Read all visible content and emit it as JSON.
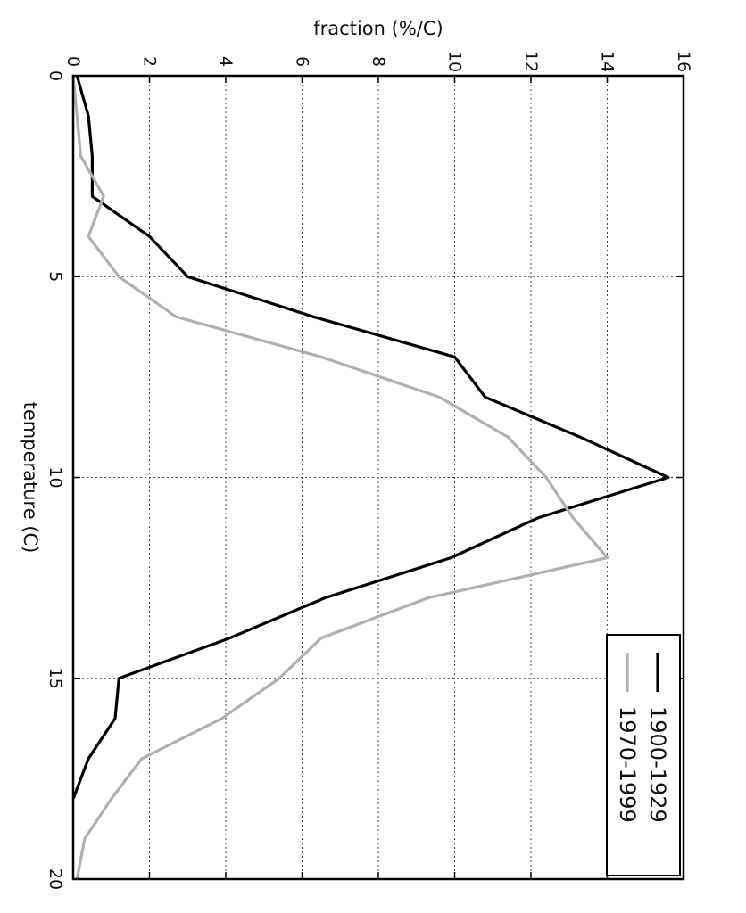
{
  "chart_data": {
    "type": "line",
    "orientation": "rotated 90° clockwise (temperature axis runs top-to-bottom on the left side, fraction axis runs left-to-right along the top)",
    "title": "",
    "xlabel": "temperature (C)",
    "ylabel": "fraction (%/C)",
    "xlim": [
      0,
      20
    ],
    "ylim": [
      0,
      16
    ],
    "x_ticks": [
      "0",
      "5",
      "10",
      "15",
      "20"
    ],
    "y_ticks": [
      "0",
      "2",
      "4",
      "6",
      "8",
      "10",
      "12",
      "14",
      "16"
    ],
    "grid": true,
    "legend_position": "bottom-right",
    "series": [
      {
        "name": "1900-1929",
        "color": "#000000",
        "x": [
          0,
          1,
          2,
          3,
          4,
          5,
          6,
          7,
          8,
          9,
          10,
          11,
          12,
          13,
          14,
          15,
          16,
          17,
          18
        ],
        "y": [
          0.1,
          0.4,
          0.5,
          0.5,
          2.0,
          3.0,
          6.3,
          10.0,
          10.8,
          13.3,
          15.6,
          12.2,
          9.9,
          6.6,
          4.1,
          1.2,
          1.1,
          0.4,
          0.0
        ]
      },
      {
        "name": "1970-1999",
        "color": "#b0b0b0",
        "x": [
          0,
          1,
          2,
          3,
          4,
          5,
          6,
          7,
          8,
          9,
          10,
          11,
          12,
          13,
          14,
          15,
          16,
          17,
          18,
          19,
          20
        ],
        "y": [
          0.0,
          0.1,
          0.2,
          0.8,
          0.4,
          1.2,
          2.7,
          6.5,
          9.6,
          11.4,
          12.4,
          13.1,
          14.0,
          9.3,
          6.5,
          5.4,
          3.9,
          1.8,
          1.0,
          0.3,
          0.1
        ]
      }
    ]
  }
}
